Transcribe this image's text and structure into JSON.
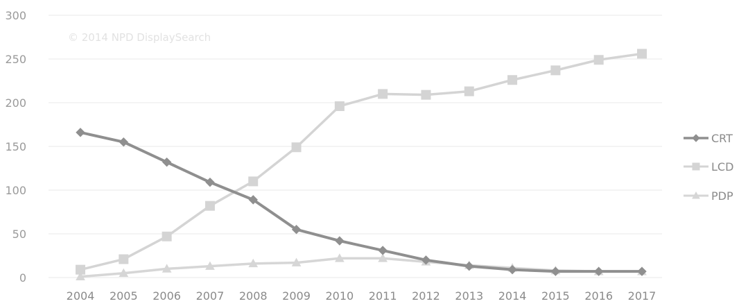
{
  "chart_data": {
    "type": "line",
    "watermark": "© 2014 NPD DisplaySearch",
    "x": [
      "2004",
      "2005",
      "2006",
      "2007",
      "2008",
      "2009",
      "2010",
      "2011",
      "2012",
      "2013",
      "2014",
      "2015",
      "2016",
      "2017"
    ],
    "ylim": [
      0,
      300
    ],
    "yticks": [
      0,
      50,
      100,
      150,
      200,
      250,
      300
    ],
    "grid": true,
    "legend_position": "right",
    "series": [
      {
        "name": "CRT",
        "color": "#8f8f8f",
        "marker": "diamond",
        "values": [
          166,
          155,
          132,
          109,
          89,
          55,
          42,
          31,
          20,
          13,
          9,
          7,
          7,
          7
        ]
      },
      {
        "name": "LCD",
        "color": "#d4d4d4",
        "marker": "square",
        "values": [
          9,
          21,
          47,
          82,
          110,
          149,
          196,
          210,
          209,
          213,
          226,
          237,
          249,
          256
        ]
      },
      {
        "name": "PDP",
        "color": "#d6d6d6",
        "marker": "triangle",
        "values": [
          1,
          5,
          10,
          13,
          16,
          17,
          22,
          22,
          18,
          14,
          11,
          8,
          7,
          7
        ]
      }
    ]
  }
}
